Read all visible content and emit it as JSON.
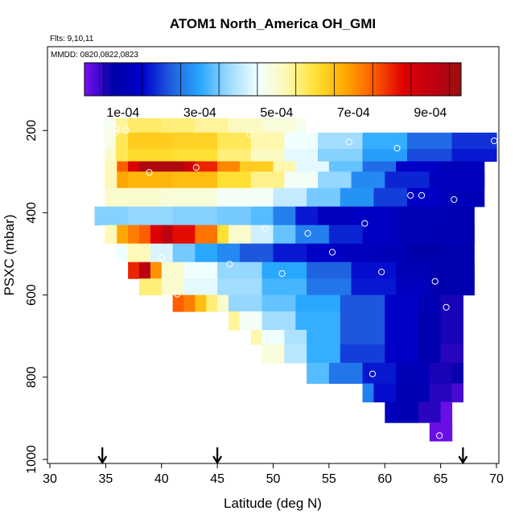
{
  "chart_data": {
    "type": "heatmap",
    "title": "ATOM1 North_America OH_GMI",
    "flights_label": "Flts: 9,10,11",
    "dates_label": "MMDD: 0820,0822,0823",
    "xlabel": "Latitude (deg N)",
    "ylabel": "PSXC (mbar)",
    "xlim": [
      30,
      70
    ],
    "ylim": [
      1000,
      0
    ],
    "x_ticks": [
      30,
      35,
      40,
      45,
      50,
      55,
      60,
      65,
      70
    ],
    "y_ticks": [
      200,
      400,
      600,
      800,
      1000
    ],
    "colorbar": {
      "range": [
        0.0,
        0.00098
      ],
      "tick_values": [
        0.0001,
        0.0003,
        0.0005,
        0.0007,
        0.0009
      ],
      "tick_labels": [
        "1e-04",
        "3e-04",
        "5e-04",
        "7e-04",
        "9e-04"
      ],
      "palette": [
        "#7a10f0",
        "#0000a8",
        "#0000cc",
        "#1f5fe0",
        "#28a8ff",
        "#9fdcff",
        "#f2ffff",
        "#fff8b0",
        "#ffe030",
        "#ffa800",
        "#ff5a00",
        "#e00000",
        "#c00010",
        "#9a1010"
      ]
    },
    "rows": [
      {
        "p_top": 170,
        "p_bot": 205,
        "segments": [
          [
            34.9,
            35.9,
            0.00047
          ],
          [
            35.9,
            37.0,
            0.00054
          ],
          [
            37.0,
            40.0,
            0.00057
          ],
          [
            40.0,
            43.0,
            0.00056
          ],
          [
            43.0,
            46.0,
            0.00054
          ],
          [
            46.0,
            49.0,
            0.00051
          ],
          [
            49.0,
            52.0,
            0.00049
          ],
          [
            52.0,
            52.9,
            0.00047
          ]
        ]
      },
      {
        "p_top": 205,
        "p_bot": 245,
        "segments": [
          [
            34.9,
            35.9,
            0.00048
          ],
          [
            35.9,
            37.0,
            0.00058
          ],
          [
            37.0,
            41.0,
            0.00063
          ],
          [
            41.0,
            45.0,
            0.00062
          ],
          [
            45.0,
            48.0,
            0.00058
          ],
          [
            48.0,
            51.0,
            0.00053
          ],
          [
            51.0,
            54.0,
            0.00045
          ],
          [
            54.0,
            58.0,
            0.00038
          ],
          [
            58.0,
            62.0,
            0.00031
          ],
          [
            62.0,
            66.0,
            0.00024
          ],
          [
            66.0,
            70.0,
            0.00019
          ]
        ]
      },
      {
        "p_top": 245,
        "p_bot": 275,
        "segments": [
          [
            34.9,
            35.9,
            0.0005
          ],
          [
            35.9,
            37.0,
            0.00058
          ],
          [
            37.0,
            41.0,
            0.00061
          ],
          [
            41.0,
            45.0,
            0.0006
          ],
          [
            45.0,
            48.0,
            0.00056
          ],
          [
            48.0,
            51.0,
            0.00051
          ],
          [
            51.0,
            54.0,
            0.00044
          ],
          [
            54.0,
            58.0,
            0.00036
          ],
          [
            58.0,
            62.0,
            0.00029
          ],
          [
            62.0,
            66.0,
            0.00021
          ],
          [
            66.0,
            70.0,
            0.00017
          ]
        ]
      },
      {
        "p_top": 275,
        "p_bot": 300,
        "segments": [
          [
            34.9,
            36.0,
            0.00052
          ],
          [
            36.0,
            37.0,
            0.00075
          ],
          [
            37.0,
            38.0,
            0.00085
          ],
          [
            38.0,
            42.0,
            0.00094
          ],
          [
            42.0,
            43.0,
            0.00088
          ],
          [
            43.0,
            45.0,
            0.0008
          ],
          [
            45.0,
            47.0,
            0.00071
          ],
          [
            47.0,
            50.0,
            0.00063
          ],
          [
            50.0,
            52.0,
            0.00053
          ],
          [
            52.0,
            55.0,
            0.00044
          ],
          [
            55.0,
            58.0,
            0.00034
          ],
          [
            58.0,
            61.0,
            0.00024
          ],
          [
            61.0,
            65.0,
            0.00014
          ],
          [
            65.0,
            68.9,
            0.00011
          ]
        ]
      },
      {
        "p_top": 300,
        "p_bot": 340,
        "segments": [
          [
            34.9,
            36.0,
            0.00052
          ],
          [
            36.0,
            37.0,
            0.00068
          ],
          [
            37.0,
            41.0,
            0.00066
          ],
          [
            41.0,
            45.0,
            0.00065
          ],
          [
            45.0,
            48.0,
            0.0006
          ],
          [
            48.0,
            51.0,
            0.00055
          ],
          [
            51.0,
            54.0,
            0.00046
          ],
          [
            54.0,
            57.0,
            0.00037
          ],
          [
            57.0,
            60.0,
            0.00027
          ],
          [
            60.0,
            64.0,
            0.00018
          ],
          [
            64.0,
            68.9,
            0.00012
          ]
        ]
      },
      {
        "p_top": 340,
        "p_bot": 385,
        "segments": [
          [
            34.9,
            36.0,
            0.0005
          ],
          [
            36.0,
            40.0,
            0.0005
          ],
          [
            40.0,
            45.0,
            0.00049
          ],
          [
            45.0,
            50.0,
            0.00046
          ],
          [
            50.0,
            53.0,
            0.00041
          ],
          [
            53.0,
            56.0,
            0.00035
          ],
          [
            56.0,
            59.0,
            0.00028
          ],
          [
            59.0,
            62.0,
            0.0002
          ],
          [
            62.0,
            65.0,
            0.00014
          ],
          [
            65.0,
            68.9,
            0.00011
          ]
        ]
      },
      {
        "p_top": 385,
        "p_bot": 430,
        "segments": [
          [
            34.0,
            37.0,
            0.00036
          ],
          [
            37.0,
            41.0,
            0.00037
          ],
          [
            41.0,
            45.0,
            0.00036
          ],
          [
            45.0,
            48.0,
            0.00035
          ],
          [
            48.0,
            50.0,
            0.00033
          ],
          [
            50.0,
            52.0,
            0.00026
          ],
          [
            52.0,
            54.0,
            0.00017
          ],
          [
            54.0,
            57.0,
            0.00012
          ],
          [
            57.0,
            61.0,
            0.00013
          ],
          [
            61.0,
            65.0,
            0.00011
          ],
          [
            65.0,
            68.0,
            0.0001
          ]
        ]
      },
      {
        "p_top": 430,
        "p_bot": 475,
        "segments": [
          [
            34.9,
            36.0,
            0.00052
          ],
          [
            36.0,
            37.0,
            0.00068
          ],
          [
            37.0,
            38.0,
            0.00072
          ],
          [
            38.0,
            39.0,
            0.00075
          ],
          [
            39.0,
            40.0,
            0.00084
          ],
          [
            40.0,
            41.0,
            0.00091
          ],
          [
            41.0,
            43.0,
            0.00082
          ],
          [
            43.0,
            45.0,
            0.00073
          ],
          [
            45.0,
            46.0,
            0.0006
          ],
          [
            46.0,
            48.0,
            0.0005
          ],
          [
            48.0,
            50.0,
            0.00042
          ],
          [
            50.0,
            52.0,
            0.00034
          ],
          [
            52.0,
            55.0,
            0.00026
          ],
          [
            55.0,
            58.0,
            0.00018
          ],
          [
            58.0,
            61.0,
            0.00013
          ],
          [
            61.0,
            64.0,
            0.00011
          ],
          [
            64.0,
            68.0,
            0.0001
          ]
        ]
      },
      {
        "p_top": 475,
        "p_bot": 520,
        "segments": [
          [
            35.9,
            37.0,
            0.00045
          ],
          [
            37.0,
            39.0,
            0.00052
          ],
          [
            39.0,
            41.0,
            0.00043
          ],
          [
            41.0,
            43.0,
            0.00035
          ],
          [
            43.0,
            45.0,
            0.0003
          ],
          [
            45.0,
            47.0,
            0.00027
          ],
          [
            47.0,
            50.0,
            0.00022
          ],
          [
            50.0,
            53.0,
            0.00017
          ],
          [
            53.0,
            56.0,
            0.00014
          ],
          [
            56.0,
            59.0,
            0.00012
          ],
          [
            59.0,
            62.0,
            0.00011
          ],
          [
            62.0,
            65.0,
            8e-05
          ],
          [
            65.0,
            68.0,
            9e-05
          ]
        ]
      },
      {
        "p_top": 520,
        "p_bot": 560,
        "segments": [
          [
            37.0,
            38.0,
            0.0008
          ],
          [
            38.0,
            39.0,
            0.00092
          ],
          [
            39.0,
            40.0,
            0.0007
          ],
          [
            40.0,
            42.0,
            0.0005
          ],
          [
            42.0,
            45.0,
            0.00045
          ],
          [
            45.0,
            49.0,
            0.00037
          ],
          [
            49.0,
            53.0,
            0.0003
          ],
          [
            53.0,
            57.0,
            0.00023
          ],
          [
            57.0,
            61.0,
            0.00016
          ],
          [
            61.0,
            64.0,
            0.00011
          ],
          [
            64.0,
            68.0,
            9e-05
          ]
        ]
      },
      {
        "p_top": 560,
        "p_bot": 600,
        "segments": [
          [
            38.0,
            40.0,
            0.00056
          ],
          [
            40.0,
            42.0,
            0.0005
          ],
          [
            42.0,
            45.0,
            0.00044
          ],
          [
            45.0,
            49.0,
            0.00038
          ],
          [
            49.0,
            53.0,
            0.00032
          ],
          [
            53.0,
            57.0,
            0.00025
          ],
          [
            57.0,
            61.0,
            0.00017
          ],
          [
            61.0,
            64.0,
            0.00012
          ],
          [
            64.0,
            68.0,
            9e-05
          ]
        ]
      },
      {
        "p_top": 600,
        "p_bot": 640,
        "segments": [
          [
            41.0,
            42.0,
            0.00075
          ],
          [
            42.0,
            43.0,
            0.00072
          ],
          [
            43.0,
            44.0,
            0.00065
          ],
          [
            44.0,
            45.0,
            0.00056
          ],
          [
            45.0,
            46.0,
            0.0005
          ],
          [
            46.0,
            49.0,
            0.00037
          ],
          [
            49.0,
            52.0,
            0.00034
          ],
          [
            52.0,
            56.0,
            0.0003
          ],
          [
            56.0,
            60.0,
            0.00022
          ],
          [
            60.0,
            63.0,
            0.00014
          ],
          [
            63.0,
            65.0,
            0.0001
          ],
          [
            65.0,
            67.0,
            6e-05
          ]
        ]
      },
      {
        "p_top": 640,
        "p_bot": 685,
        "segments": [
          [
            46.0,
            47.0,
            0.00054
          ],
          [
            47.0,
            49.0,
            0.00046
          ],
          [
            49.0,
            52.0,
            0.00038
          ],
          [
            52.0,
            56.0,
            0.00031
          ],
          [
            56.0,
            60.0,
            0.00022
          ],
          [
            60.0,
            63.0,
            0.00014
          ],
          [
            63.0,
            65.0,
            9e-05
          ],
          [
            65.0,
            67.0,
            6e-05
          ]
        ]
      },
      {
        "p_top": 685,
        "p_bot": 720,
        "segments": [
          [
            48.0,
            49.0,
            0.00053
          ],
          [
            49.0,
            51.0,
            0.00045
          ],
          [
            51.0,
            53.0,
            0.00039
          ],
          [
            53.0,
            56.0,
            0.00031
          ],
          [
            56.0,
            60.0,
            0.00022
          ],
          [
            60.0,
            63.0,
            0.00014
          ],
          [
            63.0,
            65.0,
            9e-05
          ],
          [
            65.0,
            67.0,
            6e-05
          ]
        ]
      },
      {
        "p_top": 720,
        "p_bot": 765,
        "segments": [
          [
            49.0,
            51.0,
            0.00049
          ],
          [
            51.0,
            53.0,
            0.0004
          ],
          [
            53.0,
            56.0,
            0.00031
          ],
          [
            56.0,
            60.0,
            0.0002
          ],
          [
            60.0,
            63.0,
            0.00014
          ],
          [
            63.0,
            65.0,
            9e-05
          ],
          [
            65.0,
            67.0,
            5e-05
          ]
        ]
      },
      {
        "p_top": 765,
        "p_bot": 815,
        "segments": [
          [
            53.0,
            55.0,
            0.00033
          ],
          [
            55.0,
            58.0,
            0.00025
          ],
          [
            58.0,
            61.0,
            0.00017
          ],
          [
            61.0,
            64.0,
            0.00011
          ],
          [
            64.0,
            66.0,
            6e-05
          ],
          [
            66.0,
            67.0,
            7e-05
          ]
        ]
      },
      {
        "p_top": 815,
        "p_bot": 860,
        "segments": [
          [
            58.0,
            59.0,
            0.00026
          ],
          [
            59.0,
            61.0,
            0.00016
          ],
          [
            61.0,
            64.0,
            0.0001
          ],
          [
            64.0,
            66.0,
            5e-05
          ],
          [
            66.0,
            67.0,
            3e-05
          ]
        ]
      },
      {
        "p_top": 860,
        "p_bot": 910,
        "segments": [
          [
            60.0,
            61.0,
            0.00012
          ],
          [
            61.0,
            63.0,
            0.0001
          ],
          [
            63.0,
            65.0,
            5e-05
          ],
          [
            65.0,
            66.0,
            1e-05
          ]
        ]
      },
      {
        "p_top": 910,
        "p_bot": 955,
        "segments": [
          [
            64.0,
            66.0,
            1e-05
          ]
        ]
      }
    ],
    "points": [
      [
        35.6,
        190
      ],
      [
        35.9,
        205
      ],
      [
        36.0,
        197
      ],
      [
        35.3,
        225
      ],
      [
        36.8,
        200
      ],
      [
        38.9,
        302
      ],
      [
        43.1,
        290
      ],
      [
        47.9,
        210
      ],
      [
        51.8,
        208
      ],
      [
        56.8,
        228
      ],
      [
        61.1,
        243
      ],
      [
        34.7,
        438
      ],
      [
        49.3,
        438
      ],
      [
        53.1,
        450
      ],
      [
        58.2,
        426
      ],
      [
        55.3,
        496
      ],
      [
        62.3,
        358
      ],
      [
        63.3,
        358
      ],
      [
        66.2,
        368
      ],
      [
        69.8,
        225
      ],
      [
        36.2,
        517
      ],
      [
        40.0,
        510
      ],
      [
        46.1,
        525
      ],
      [
        50.8,
        548
      ],
      [
        59.7,
        544
      ],
      [
        64.5,
        567
      ],
      [
        37.8,
        605
      ],
      [
        41.4,
        598
      ],
      [
        65.5,
        630
      ],
      [
        58.9,
        792
      ],
      [
        64.9,
        942
      ]
    ],
    "arrows_lat": [
      34.7,
      45.0,
      67.0
    ]
  }
}
